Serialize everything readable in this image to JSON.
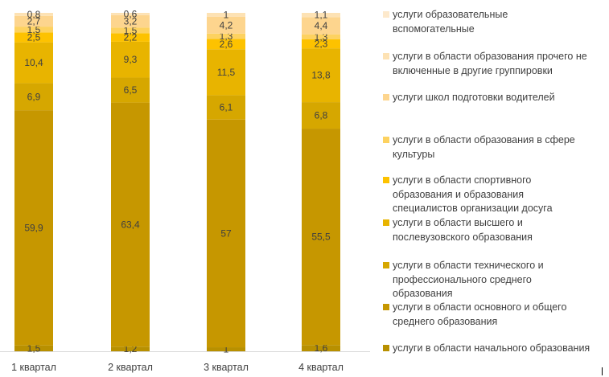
{
  "chart_data": {
    "type": "bar",
    "stacked": true,
    "normalized_percent": true,
    "categories": [
      "1 квартал",
      "2 квартал",
      "3 квартал",
      "4 квартал"
    ],
    "series": [
      {
        "name": "услуги в области начального образования",
        "color": "#b89000",
        "values": [
          1.5,
          1.2,
          1,
          1.6
        ]
      },
      {
        "name": "услуги в области основного и общего среднего образования",
        "color": "#c69700",
        "values": [
          59.9,
          63.4,
          57,
          55.5
        ]
      },
      {
        "name": "услуги в области технического и профессионального среднего образования",
        "color": "#d6a700",
        "values": [
          6.9,
          6.5,
          6.1,
          6.8
        ]
      },
      {
        "name": "услуги в области высшего и послевузовского образования",
        "color": "#e8b400",
        "values": [
          10.4,
          9.3,
          11.5,
          13.8
        ]
      },
      {
        "name": "услуги в области спортивного образования и образования специалистов организации досуга",
        "color": "#fdc200",
        "values": [
          2.5,
          2.2,
          2.6,
          2.3
        ]
      },
      {
        "name": "услуги в области образования в сфере культуры",
        "color": "#fdd260",
        "values": [
          1.5,
          1.5,
          1.3,
          1.3
        ]
      },
      {
        "name": "услуги школ подготовки водителей",
        "color": "#fdd58e",
        "values": [
          2.7,
          3.2,
          4.2,
          4.4
        ]
      },
      {
        "name": "услуги в области образования прочего  не включенные в другие группировки",
        "color": "#fde2b4",
        "values": [
          0.8,
          0.6,
          1,
          1.1
        ]
      },
      {
        "name": "услуги образовательные вспомогательные",
        "color": "#fde9cc",
        "values": [
          0,
          0,
          0,
          0
        ]
      }
    ],
    "data_labels": [
      [
        "1,5",
        "59,9",
        "6,9",
        "10,4",
        "2,5",
        "1,5",
        "2,7",
        "0,8"
      ],
      [
        "1,2",
        "63,4",
        "6,5",
        "9,3",
        "2,2",
        "1,5",
        "3,2",
        "0,6"
      ],
      [
        "1",
        "57",
        "6,1",
        "11,5",
        "2,6",
        "1,3",
        "4,2",
        "1"
      ],
      [
        "1,6",
        "55,5",
        "6,8",
        "13,8",
        "2,3",
        "1,3",
        "4,4",
        "1,1"
      ]
    ],
    "legend": {
      "position": "right",
      "items": [
        "услуги образовательные\nвспомогательные",
        "услуги в области образования прочего  не\nвключенные в другие группировки",
        "услуги школ подготовки водителей",
        "услуги в области образования в сфере\nкультуры",
        "услуги в области спортивного\nобразования и образования\nспециалистов организации досуга",
        "услуги в области высшего и\nпослевузовского образования",
        "услуги в области технического и\nпрофессионального среднего\nобразования",
        "услуги в области основного и общего\nсреднего образования",
        "услуги в области начального образования"
      ],
      "colors": [
        "#fde9cc",
        "#fde2b4",
        "#fdd58e",
        "#fdd260",
        "#fdc200",
        "#e8b400",
        "#d6a700",
        "#c69700",
        "#b89000"
      ]
    },
    "grid": false,
    "title": "",
    "xlabel": "",
    "ylabel": ""
  }
}
